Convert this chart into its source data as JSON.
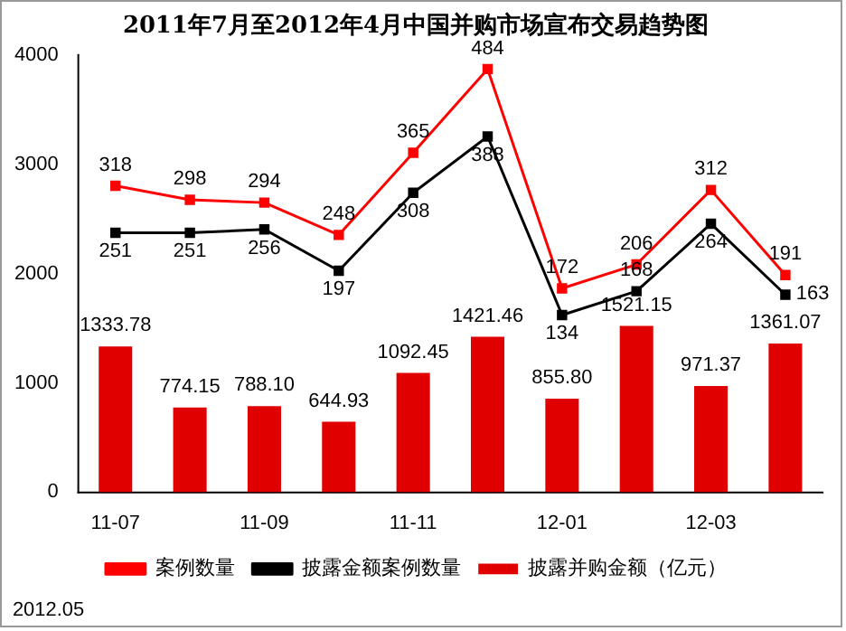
{
  "chart_data": {
    "type": "bar",
    "title": "2011年7月至2012年4月中国并购市场宣布交易趋势图",
    "categories": [
      "11-07",
      null,
      "11-09",
      null,
      "11-11",
      null,
      "12-01",
      null,
      "12-03",
      null
    ],
    "series": [
      {
        "name": "披露并购金额（亿元）",
        "color": "#e00000",
        "values": [
          1333.78,
          774.15,
          788.1,
          644.93,
          1092.45,
          1421.46,
          855.8,
          1521.15,
          971.37,
          1361.07
        ],
        "value_labels": [
          "1333.78",
          "774.15",
          "788.10",
          "644.93",
          "1092.45",
          "1421.46",
          "855.80",
          "1521.15",
          "971.37",
          "1361.07"
        ]
      },
      {
        "name": "案例数量",
        "type": "line",
        "axis": "y2",
        "color": "#ff0000",
        "values": [
          318,
          298,
          294,
          248,
          365,
          484,
          172,
          206,
          312,
          191
        ]
      },
      {
        "name": "披露金额案例数量",
        "type": "line",
        "axis": "y2",
        "color": "#000000",
        "values": [
          251,
          251,
          256,
          197,
          308,
          388,
          134,
          168,
          264,
          163
        ]
      }
    ],
    "ylim": [
      0,
      4000
    ],
    "yticks": [
      0,
      1000,
      2000,
      3000,
      4000
    ],
    "y2lim": [
      -118,
      504
    ],
    "data_labels": true,
    "legend": "bottom",
    "marker": "square",
    "grid": false,
    "annotations": [
      "2012.05"
    ]
  }
}
